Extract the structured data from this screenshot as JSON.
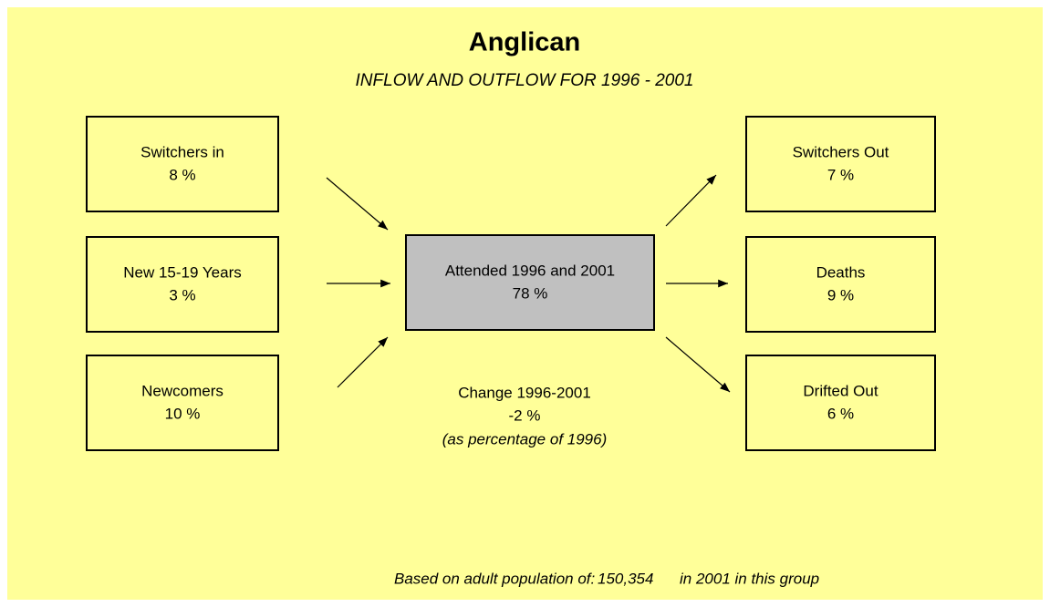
{
  "title": "Anglican",
  "subtitle": "INFLOW AND OUTFLOW FOR 1996 - 2001",
  "inflows": [
    {
      "label": "Switchers in",
      "value": "8 %"
    },
    {
      "label": "New 15-19 Years",
      "value": "3 %"
    },
    {
      "label": "Newcomers",
      "value": "10 %"
    }
  ],
  "center": {
    "label": "Attended 1996 and 2001",
    "value": "78 %"
  },
  "outflows": [
    {
      "label": "Switchers Out",
      "value": "7 %"
    },
    {
      "label": "Deaths",
      "value": "9 %"
    },
    {
      "label": "Drifted Out",
      "value": "6 %"
    }
  ],
  "change": {
    "label": "Change 1996-2001",
    "value": "-2 %",
    "note": "(as percentage of 1996)"
  },
  "footer": {
    "prefix": "Based on adult population of:",
    "population": "150,354",
    "suffix": "in 2001 in this group"
  }
}
